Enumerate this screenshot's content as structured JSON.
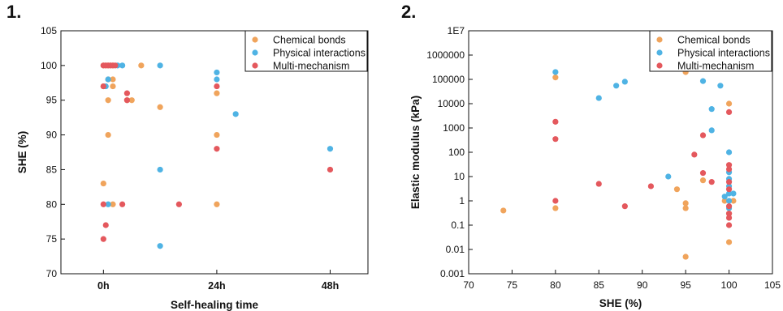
{
  "colors": {
    "Chemical bonds": "#F0A45C",
    "Physical interactions": "#4FB3E4",
    "Multi-mechanism": "#E4585D"
  },
  "chart_data": [
    {
      "panel_label": "1.",
      "type": "scatter",
      "title": "",
      "xlabel": "Self-healing time",
      "ylabel": "SHE (%)",
      "x_unit": "hours",
      "xlim": [
        -9,
        56
      ],
      "ylim": [
        70,
        105
      ],
      "xticks": [
        {
          "value": 0,
          "label": "0h"
        },
        {
          "value": 24,
          "label": "24h"
        },
        {
          "value": 48,
          "label": "48h"
        }
      ],
      "yticks": [
        70,
        75,
        80,
        85,
        90,
        95,
        100,
        105
      ],
      "legend": {
        "placement": "top-right",
        "entries": [
          "Chemical bonds",
          "Physical interactions",
          "Multi-mechanism"
        ]
      },
      "series": [
        {
          "name": "Chemical bonds",
          "points": [
            [
              0,
              100
            ],
            [
              0.5,
              100
            ],
            [
              1,
              100
            ],
            [
              1.5,
              100
            ],
            [
              2,
              100
            ],
            [
              8,
              100
            ],
            [
              1,
              98
            ],
            [
              2,
              98
            ],
            [
              2,
              97
            ],
            [
              0,
              97
            ],
            [
              1,
              95
            ],
            [
              5,
              95
            ],
            [
              6,
              95
            ],
            [
              12,
              94
            ],
            [
              1,
              90
            ],
            [
              0,
              83
            ],
            [
              2,
              80
            ],
            [
              24,
              96
            ],
            [
              24,
              90
            ],
            [
              24,
              80
            ]
          ]
        },
        {
          "name": "Physical interactions",
          "points": [
            [
              3,
              100
            ],
            [
              4,
              100
            ],
            [
              12,
              100
            ],
            [
              1,
              98
            ],
            [
              0.5,
              97
            ],
            [
              24,
              99
            ],
            [
              24,
              98
            ],
            [
              28,
              93
            ],
            [
              12,
              85
            ],
            [
              1,
              80
            ],
            [
              12,
              74
            ],
            [
              48,
              88
            ]
          ]
        },
        {
          "name": "Multi-mechanism",
          "points": [
            [
              0,
              100
            ],
            [
              0.5,
              100
            ],
            [
              1,
              100
            ],
            [
              1.5,
              100
            ],
            [
              2,
              100
            ],
            [
              2.5,
              100
            ],
            [
              0,
              97
            ],
            [
              5,
              96
            ],
            [
              5,
              95
            ],
            [
              0,
              80
            ],
            [
              4,
              80
            ],
            [
              16,
              80
            ],
            [
              0.5,
              77
            ],
            [
              0,
              75
            ],
            [
              24,
              97
            ],
            [
              24,
              88
            ],
            [
              48,
              85
            ]
          ]
        }
      ]
    },
    {
      "panel_label": "2.",
      "type": "scatter",
      "title": "",
      "xlabel": "SHE (%)",
      "ylabel": "Elastic modulus (kPa)",
      "xlim": [
        70,
        105
      ],
      "ylim": [
        0.001,
        10000000
      ],
      "y_scale": "log",
      "xticks": [
        70,
        75,
        80,
        85,
        90,
        95,
        100,
        105
      ],
      "yticks": [
        "0.001",
        "0.01",
        "0.1",
        "1",
        "10",
        "100",
        "1000",
        "10000",
        "100000",
        "1000000",
        "1E7"
      ],
      "legend": {
        "placement": "top-right",
        "entries": [
          "Chemical bonds",
          "Physical interactions",
          "Multi-mechanism"
        ]
      },
      "series": [
        {
          "name": "Chemical bonds",
          "points": [
            [
              74,
              0.4
            ],
            [
              80,
              120000
            ],
            [
              80,
              0.5
            ],
            [
              94,
              3
            ],
            [
              95,
              200000
            ],
            [
              95,
              0.8
            ],
            [
              95,
              0.5
            ],
            [
              95,
              0.005
            ],
            [
              97,
              7
            ],
            [
              99.5,
              1
            ],
            [
              100,
              10000
            ],
            [
              100,
              0.3
            ],
            [
              100,
              0.02
            ],
            [
              100.5,
              1
            ]
          ]
        },
        {
          "name": "Physical interactions",
          "points": [
            [
              80,
              200000
            ],
            [
              85,
              17000
            ],
            [
              87,
              55000
            ],
            [
              88,
              80000
            ],
            [
              93,
              10
            ],
            [
              97,
              85000
            ],
            [
              98,
              6000
            ],
            [
              98,
              800
            ],
            [
              99,
              55000
            ],
            [
              100,
              100
            ],
            [
              100,
              15
            ],
            [
              100,
              8
            ],
            [
              100,
              4
            ],
            [
              100,
              2
            ],
            [
              99.5,
              1.5
            ],
            [
              100.5,
              2
            ],
            [
              100,
              1
            ],
            [
              100,
              0.5
            ]
          ]
        },
        {
          "name": "Multi-mechanism",
          "points": [
            [
              80,
              1800
            ],
            [
              80,
              350
            ],
            [
              80,
              1
            ],
            [
              85,
              5
            ],
            [
              88,
              0.6
            ],
            [
              91,
              4
            ],
            [
              96,
              80
            ],
            [
              97,
              500
            ],
            [
              97,
              14
            ],
            [
              98,
              6
            ],
            [
              100,
              4500
            ],
            [
              100,
              30
            ],
            [
              100,
              20
            ],
            [
              100,
              6
            ],
            [
              100,
              3
            ],
            [
              100,
              0.6
            ],
            [
              100,
              0.3
            ],
            [
              100,
              0.2
            ],
            [
              100,
              0.1
            ]
          ]
        }
      ]
    }
  ]
}
